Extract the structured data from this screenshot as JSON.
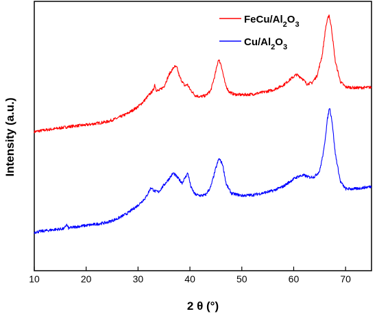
{
  "chart_data": {
    "type": "line",
    "xlabel": "2 θ (°)",
    "ylabel": "Intensity (a.u.)",
    "xlim": [
      10,
      75
    ],
    "ylim": [
      0,
      100
    ],
    "x_ticks": [
      "10",
      "20",
      "30",
      "40",
      "50",
      "60",
      "70"
    ],
    "y_ticks_labeled": false,
    "grid": false,
    "legend_position": "top-right",
    "series": [
      {
        "name_parts": [
          "FeCu/Al",
          "2",
          "O",
          "3"
        ],
        "color": "#ff0000",
        "points": [
          [
            10,
            51.6
          ],
          [
            12,
            52.2
          ],
          [
            14,
            52.7
          ],
          [
            16,
            53.3
          ],
          [
            18,
            53.8
          ],
          [
            20,
            54.1
          ],
          [
            22,
            54.7
          ],
          [
            24,
            55.3
          ],
          [
            26,
            56.6
          ],
          [
            28,
            58.4
          ],
          [
            30,
            60.9
          ],
          [
            31,
            62.7
          ],
          [
            32,
            65.0
          ],
          [
            33,
            67.2
          ],
          [
            33.2,
            69.3
          ],
          [
            33.5,
            67.1
          ],
          [
            34,
            66.8
          ],
          [
            35,
            68.4
          ],
          [
            36,
            72.9
          ],
          [
            37,
            75.8
          ],
          [
            37.5,
            75.4
          ],
          [
            38,
            72.0
          ],
          [
            39,
            68.6
          ],
          [
            39.5,
            69.2
          ],
          [
            40,
            67.4
          ],
          [
            41,
            65.1
          ],
          [
            42,
            64.6
          ],
          [
            43,
            65.0
          ],
          [
            44,
            66.8
          ],
          [
            44.8,
            72.4
          ],
          [
            45.5,
            78.5
          ],
          [
            46,
            76.6
          ],
          [
            46.8,
            69.3
          ],
          [
            47.5,
            66.5
          ],
          [
            48.5,
            65.5
          ],
          [
            50,
            65.3
          ],
          [
            52,
            65.5
          ],
          [
            54,
            66.2
          ],
          [
            56,
            67.1
          ],
          [
            58,
            68.9
          ],
          [
            59.5,
            71.3
          ],
          [
            60.5,
            72.8
          ],
          [
            61.5,
            71.7
          ],
          [
            62.5,
            69.4
          ],
          [
            63.5,
            69.7
          ],
          [
            64.5,
            72.4
          ],
          [
            65.5,
            80.1
          ],
          [
            66.2,
            90.7
          ],
          [
            66.8,
            95.2
          ],
          [
            67.3,
            89.9
          ],
          [
            68,
            77.9
          ],
          [
            69,
            70.2
          ],
          [
            70,
            68.2
          ],
          [
            72,
            67.9
          ],
          [
            74,
            68.0
          ],
          [
            75,
            68.1
          ]
        ]
      },
      {
        "name_parts": [
          "Cu/Al",
          "2",
          "O",
          "3"
        ],
        "color": "#0000ff",
        "points": [
          [
            10,
            14.3
          ],
          [
            12,
            14.8
          ],
          [
            14,
            15.3
          ],
          [
            15.8,
            15.6
          ],
          [
            16.2,
            17.2
          ],
          [
            16.6,
            15.8
          ],
          [
            18,
            16.3
          ],
          [
            20,
            16.8
          ],
          [
            22,
            17.3
          ],
          [
            24,
            17.9
          ],
          [
            26,
            19.3
          ],
          [
            28,
            21.4
          ],
          [
            30,
            24.3
          ],
          [
            31.5,
            27.2
          ],
          [
            32.5,
            30.9
          ],
          [
            33.2,
            29.5
          ],
          [
            34,
            29.3
          ],
          [
            35,
            31.8
          ],
          [
            36,
            34.2
          ],
          [
            36.8,
            36.3
          ],
          [
            37.5,
            34.8
          ],
          [
            38.5,
            32.6
          ],
          [
            39.6,
            36.3
          ],
          [
            40.2,
            31.0
          ],
          [
            41,
            28.3
          ],
          [
            42,
            27.9
          ],
          [
            43,
            28.1
          ],
          [
            44,
            31.0
          ],
          [
            45,
            38.1
          ],
          [
            45.6,
            41.7
          ],
          [
            46.3,
            39.5
          ],
          [
            47,
            32.1
          ],
          [
            48,
            28.7
          ],
          [
            50,
            27.9
          ],
          [
            52,
            28.1
          ],
          [
            54,
            28.8
          ],
          [
            56,
            29.7
          ],
          [
            58,
            31.3
          ],
          [
            60,
            34.1
          ],
          [
            61,
            35.1
          ],
          [
            62,
            35.4
          ],
          [
            63,
            34.7
          ],
          [
            64,
            34.9
          ],
          [
            65,
            37.0
          ],
          [
            65.8,
            44.6
          ],
          [
            66.5,
            56.2
          ],
          [
            66.9,
            60.8
          ],
          [
            67.4,
            55.5
          ],
          [
            68,
            43.7
          ],
          [
            69,
            33.1
          ],
          [
            70,
            30.4
          ],
          [
            72,
            30.4
          ],
          [
            74,
            31.0
          ],
          [
            75,
            31.3
          ]
        ]
      }
    ]
  }
}
